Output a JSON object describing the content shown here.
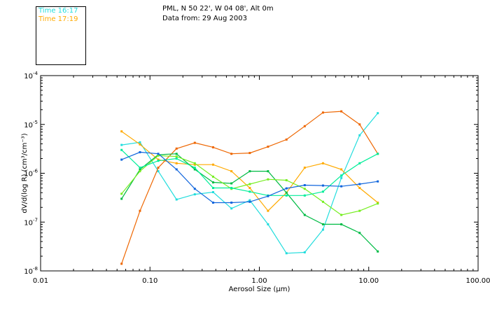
{
  "legend": [
    {
      "label": "Time 16:17",
      "color": "#22dddd"
    },
    {
      "label": "Time 17:19",
      "color": "#ffaa00"
    }
  ],
  "header": {
    "line1": "PML, N 50 22', W 04 08', Alt 0m",
    "line2": "Data from: 29 Aug 2003"
  },
  "chart_data": {
    "type": "line",
    "xlabel": "Aerosol Size (μm)",
    "ylabel": "dV/d(log R) (cm³/cm⁻³)",
    "xscale": "log",
    "yscale": "log",
    "xlim": [
      0.01,
      100
    ],
    "ylim": [
      1e-08,
      0.0001
    ],
    "xticks": [
      {
        "value": 0.01,
        "label": "0.01"
      },
      {
        "value": 0.1,
        "label": "0.10"
      },
      {
        "value": 1,
        "label": "1.00"
      },
      {
        "value": 10,
        "label": "10.00"
      },
      {
        "value": 100,
        "label": "100.00"
      }
    ],
    "yticks": [
      {
        "value": 1e-08,
        "base": "10",
        "exp": "-8"
      },
      {
        "value": 1e-07,
        "base": "10",
        "exp": "-7"
      },
      {
        "value": 1e-06,
        "base": "10",
        "exp": "-6"
      },
      {
        "value": 1e-05,
        "base": "10",
        "exp": "-5"
      },
      {
        "value": 0.0001,
        "base": "10",
        "exp": "-4"
      }
    ],
    "x": [
      0.055,
      0.081,
      0.119,
      0.175,
      0.257,
      0.378,
      0.556,
      0.818,
      1.2,
      1.77,
      2.6,
      3.82,
      5.62,
      8.26,
      12.1
    ],
    "series": [
      {
        "color": "#22dddd",
        "values": [
          3.8e-06,
          4.3e-06,
          1.1e-06,
          2.9e-07,
          3.7e-07,
          4.1e-07,
          1.9e-07,
          2.8e-07,
          9e-08,
          2.3e-08,
          2.4e-08,
          7e-08,
          8e-07,
          6e-06,
          1.7e-05
        ]
      },
      {
        "color": "#ffaa00",
        "values": [
          7.2e-06,
          3.9e-06,
          1.9e-06,
          1.6e-06,
          1.5e-06,
          1.5e-06,
          1.1e-06,
          5e-07,
          1.7e-07,
          4e-07,
          1.3e-06,
          1.6e-06,
          1.2e-06,
          5e-07,
          2.5e-07
        ]
      },
      {
        "color": "#ee6600",
        "values": [
          1.4e-08,
          1.7e-07,
          1.3e-06,
          3.2e-06,
          4.2e-06,
          3.4e-06,
          2.5e-06,
          2.6e-06,
          3.5e-06,
          4.9e-06,
          9.2e-06,
          1.75e-05,
          1.85e-05,
          1e-05,
          2.5e-06
        ]
      },
      {
        "color": "#00bb44",
        "values": [
          3e-07,
          1.2e-06,
          2.4e-06,
          2.5e-06,
          1.2e-06,
          6.5e-07,
          6.2e-07,
          1.1e-06,
          1.1e-06,
          4e-07,
          1.4e-07,
          9e-08,
          9e-08,
          6e-08,
          2.5e-08
        ]
      },
      {
        "color": "#77ee22",
        "values": [
          3.8e-07,
          1.1e-06,
          2.3e-06,
          2.2e-06,
          1.6e-06,
          8.5e-07,
          4.8e-07,
          6e-07,
          7.5e-07,
          7.2e-07,
          4.8e-07,
          2.6e-07,
          1.4e-07,
          1.7e-07,
          2.4e-07
        ]
      },
      {
        "color": "#00ee99",
        "values": [
          3e-06,
          1.3e-06,
          1.8e-06,
          2e-06,
          1.3e-06,
          5e-07,
          5e-07,
          4.2e-07,
          3.5e-07,
          3.5e-07,
          3.5e-07,
          4.2e-07,
          9e-07,
          1.6e-06,
          2.5e-06
        ]
      },
      {
        "color": "#1166dd",
        "values": [
          1.9e-06,
          2.7e-06,
          2.5e-06,
          1.2e-06,
          4.8e-07,
          2.5e-07,
          2.5e-07,
          2.6e-07,
          3.4e-07,
          4.9e-07,
          5.7e-07,
          5.6e-07,
          5.4e-07,
          6e-07,
          6.8e-07
        ]
      }
    ]
  }
}
